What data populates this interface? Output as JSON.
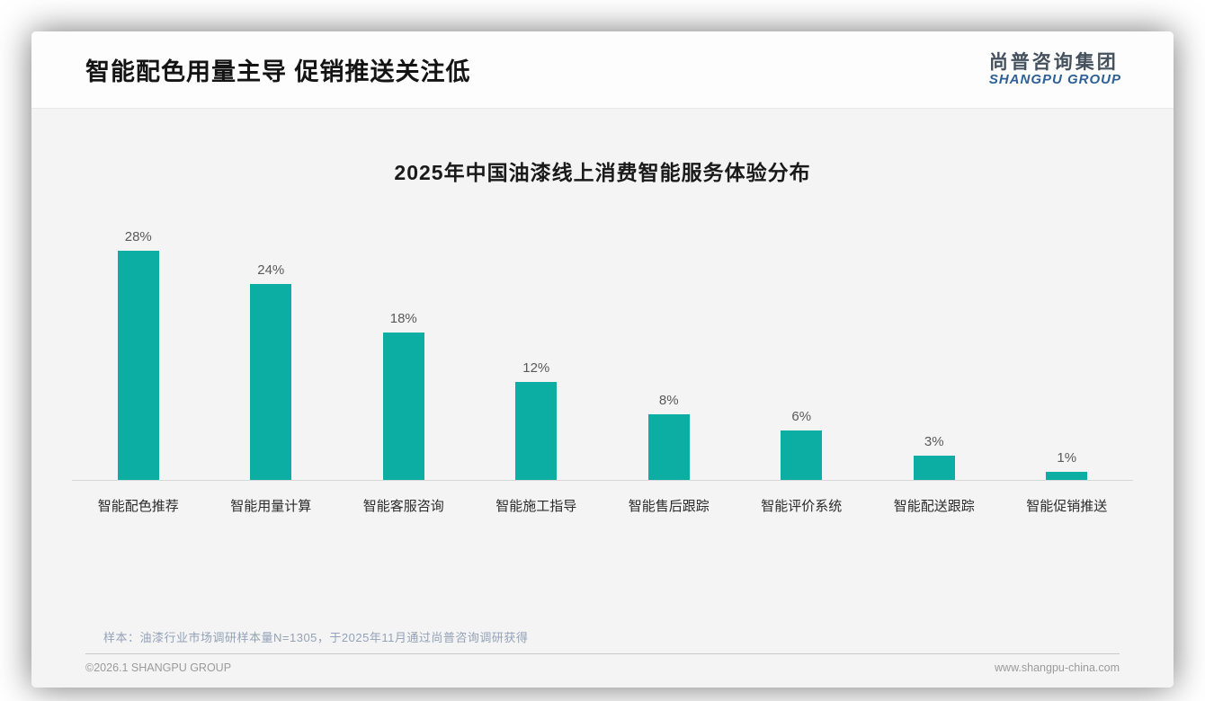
{
  "header": {
    "title": "智能配色用量主导 促销推送关注低"
  },
  "logo": {
    "cn": "尚普咨询集团",
    "en": "SHANGPU GROUP"
  },
  "watermark": {
    "cn": "尚普咨询集团",
    "en": "SHANGPU GROUP"
  },
  "chart_data": {
    "type": "bar",
    "title": "2025年中国油漆线上消费智能服务体验分布",
    "categories": [
      "智能配色推荐",
      "智能用量计算",
      "智能客服咨询",
      "智能施工指导",
      "智能售后跟踪",
      "智能评价系统",
      "智能配送跟踪",
      "智能促销推送"
    ],
    "values": [
      28,
      24,
      18,
      12,
      8,
      6,
      3,
      1
    ],
    "unit": "%",
    "bar_color": "#0cada3",
    "value_label_color": "#595959",
    "ylim": [
      0,
      30
    ],
    "grid": false,
    "legend": false,
    "value_labels_position": "above-bars"
  },
  "footer": {
    "note": "样本：油漆行业市场调研样本量N=1305，于2025年11月通过尚普咨询调研获得",
    "copyright": "©2026.1 SHANGPU GROUP",
    "website": "www.shangpu-china.com"
  }
}
